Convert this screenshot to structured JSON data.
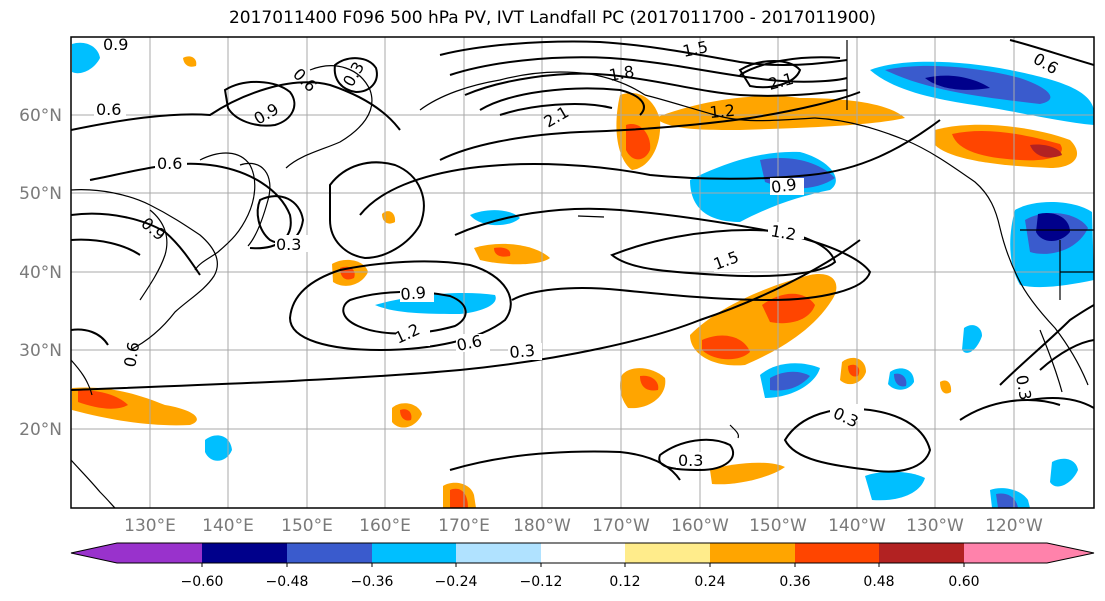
{
  "title": "2017011400 F096 500 hPa PV, IVT Landfall PC (2017011700 - 2017011900)",
  "latitude_labels": [
    "60°N",
    "50°N",
    "40°N",
    "30°N",
    "20°N"
  ],
  "longitude_labels": [
    "130°E",
    "140°E",
    "150°E",
    "160°E",
    "170°E",
    "180°W",
    "170°W",
    "160°W",
    "150°W",
    "140°W",
    "130°W",
    "120°W"
  ],
  "contour_labels": [
    "0.9",
    "0.6",
    "0.6",
    "0.3",
    "0.9",
    "0.6",
    "0.9",
    "0.3",
    "0.6",
    "1.5",
    "1.8",
    "2.1",
    "2.1",
    "1.2",
    "0.9",
    "1.2",
    "1.5",
    "0.9",
    "1.2",
    "0.6",
    "0.3",
    "0.3",
    "0.3",
    "0.6",
    "0.3"
  ],
  "colorbar": {
    "ticks": [
      "−0.60",
      "−0.48",
      "−0.36",
      "−0.24",
      "−0.12",
      "0.12",
      "0.24",
      "0.36",
      "0.48",
      "0.60"
    ],
    "colors": [
      "#9932cc",
      "#00008b",
      "#3a5bcd",
      "#00bfff",
      "#b0e2ff",
      "#ffffff",
      "#ffec8b",
      "#ffa500",
      "#ff4500",
      "#b22222",
      "#ff82ab"
    ]
  },
  "colors": {
    "grid": "#a9a9a9",
    "contour": "#000000",
    "coast": "#000000"
  }
}
